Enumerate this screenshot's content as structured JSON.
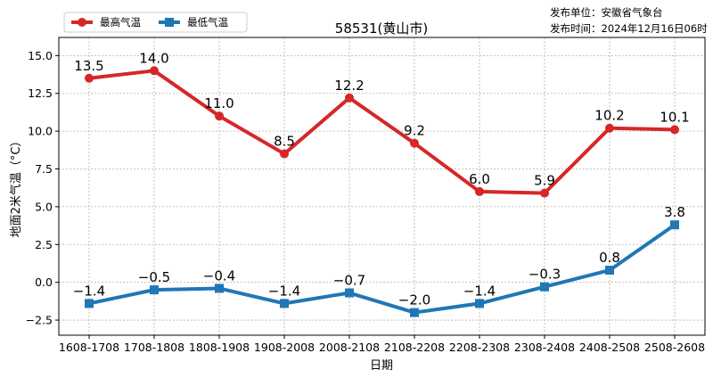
{
  "publisher": {
    "unit": "发布单位：安徽省气象台",
    "time": "发布时间：2024年12月16日06时"
  },
  "chart_data": {
    "type": "line",
    "title": "58531(黄山市)",
    "xlabel": "日期",
    "ylabel": "地面2米气温（°C）",
    "categories": [
      "1608-1708",
      "1708-1808",
      "1808-1908",
      "1908-2008",
      "2008-2108",
      "2108-2208",
      "2208-2308",
      "2308-2408",
      "2408-2508",
      "2508-2608"
    ],
    "ylim": [
      -3.5,
      16.2
    ],
    "yticks": [
      "−2.5",
      "0.0",
      "2.5",
      "5.0",
      "7.5",
      "10.0",
      "12.5",
      "15.0"
    ],
    "grid": true,
    "legend": "top-left",
    "series": [
      {
        "name": "最高气温",
        "color": "#d62728",
        "marker": "circle",
        "values": [
          13.5,
          14.0,
          11.0,
          8.5,
          12.2,
          9.2,
          6.0,
          5.9,
          10.2,
          10.1
        ],
        "labels": [
          "13.5",
          "14.0",
          "11.0",
          "8.5",
          "12.2",
          "9.2",
          "6.0",
          "5.9",
          "10.2",
          "10.1"
        ]
      },
      {
        "name": "最低气温",
        "color": "#1f77b4",
        "marker": "square",
        "values": [
          -1.4,
          -0.5,
          -0.4,
          -1.4,
          -0.7,
          -2.0,
          -1.4,
          -0.3,
          0.8,
          3.8
        ],
        "labels": [
          "−1.4",
          "−0.5",
          "−0.4",
          "−1.4",
          "−0.7",
          "−2.0",
          "−1.4",
          "−0.3",
          "0.8",
          "3.8"
        ]
      }
    ]
  }
}
